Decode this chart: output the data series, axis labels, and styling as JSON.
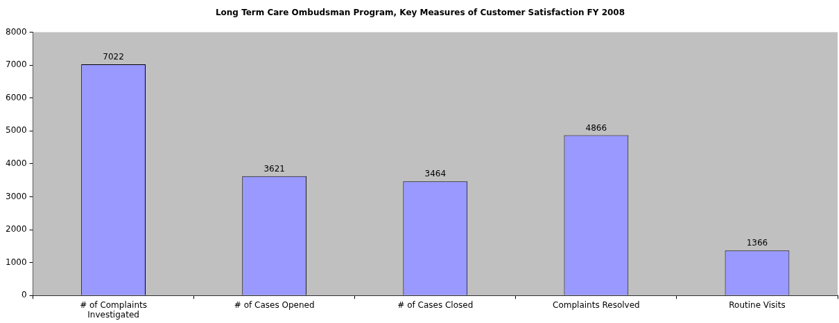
{
  "chart_data": {
    "type": "bar",
    "title": "Long Term Care Ombudsman Program, Key Measures of Customer Satisfaction FY 2008",
    "categories": [
      "# of Complaints Investigated",
      "# of Cases Opened",
      "# of Cases Closed",
      "Complaints Resolved",
      "Routine Visits"
    ],
    "values": [
      7022,
      3621,
      3464,
      4866,
      1366
    ],
    "color": "#9999ff",
    "ylim": [
      0,
      8000
    ],
    "yticks": [
      0,
      1000,
      2000,
      3000,
      4000,
      5000,
      6000,
      7000,
      8000
    ],
    "data_labels": true
  }
}
